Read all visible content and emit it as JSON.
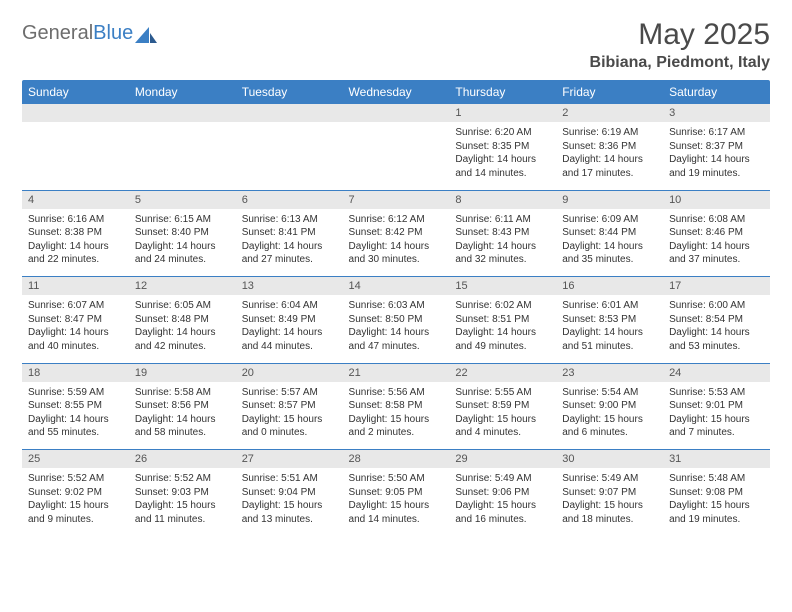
{
  "brand": {
    "part1": "General",
    "part2": "Blue"
  },
  "title": "May 2025",
  "location": "Bibiana, Piedmont, Italy",
  "colors": {
    "header_bg": "#3b7fc4",
    "header_text": "#ffffff",
    "daynum_bg": "#e8e8e8",
    "daynum_text": "#555555",
    "body_text": "#333333",
    "logo_gray": "#6d6d6d",
    "logo_blue": "#3b7fc4",
    "page_bg": "#ffffff"
  },
  "weekdays": [
    "Sunday",
    "Monday",
    "Tuesday",
    "Wednesday",
    "Thursday",
    "Friday",
    "Saturday"
  ],
  "weeks": [
    {
      "nums": [
        "",
        "",
        "",
        "",
        "1",
        "2",
        "3"
      ],
      "cells": [
        null,
        null,
        null,
        null,
        {
          "sunrise": "Sunrise: 6:20 AM",
          "sunset": "Sunset: 8:35 PM",
          "day1": "Daylight: 14 hours",
          "day2": "and 14 minutes."
        },
        {
          "sunrise": "Sunrise: 6:19 AM",
          "sunset": "Sunset: 8:36 PM",
          "day1": "Daylight: 14 hours",
          "day2": "and 17 minutes."
        },
        {
          "sunrise": "Sunrise: 6:17 AM",
          "sunset": "Sunset: 8:37 PM",
          "day1": "Daylight: 14 hours",
          "day2": "and 19 minutes."
        }
      ]
    },
    {
      "nums": [
        "4",
        "5",
        "6",
        "7",
        "8",
        "9",
        "10"
      ],
      "cells": [
        {
          "sunrise": "Sunrise: 6:16 AM",
          "sunset": "Sunset: 8:38 PM",
          "day1": "Daylight: 14 hours",
          "day2": "and 22 minutes."
        },
        {
          "sunrise": "Sunrise: 6:15 AM",
          "sunset": "Sunset: 8:40 PM",
          "day1": "Daylight: 14 hours",
          "day2": "and 24 minutes."
        },
        {
          "sunrise": "Sunrise: 6:13 AM",
          "sunset": "Sunset: 8:41 PM",
          "day1": "Daylight: 14 hours",
          "day2": "and 27 minutes."
        },
        {
          "sunrise": "Sunrise: 6:12 AM",
          "sunset": "Sunset: 8:42 PM",
          "day1": "Daylight: 14 hours",
          "day2": "and 30 minutes."
        },
        {
          "sunrise": "Sunrise: 6:11 AM",
          "sunset": "Sunset: 8:43 PM",
          "day1": "Daylight: 14 hours",
          "day2": "and 32 minutes."
        },
        {
          "sunrise": "Sunrise: 6:09 AM",
          "sunset": "Sunset: 8:44 PM",
          "day1": "Daylight: 14 hours",
          "day2": "and 35 minutes."
        },
        {
          "sunrise": "Sunrise: 6:08 AM",
          "sunset": "Sunset: 8:46 PM",
          "day1": "Daylight: 14 hours",
          "day2": "and 37 minutes."
        }
      ]
    },
    {
      "nums": [
        "11",
        "12",
        "13",
        "14",
        "15",
        "16",
        "17"
      ],
      "cells": [
        {
          "sunrise": "Sunrise: 6:07 AM",
          "sunset": "Sunset: 8:47 PM",
          "day1": "Daylight: 14 hours",
          "day2": "and 40 minutes."
        },
        {
          "sunrise": "Sunrise: 6:05 AM",
          "sunset": "Sunset: 8:48 PM",
          "day1": "Daylight: 14 hours",
          "day2": "and 42 minutes."
        },
        {
          "sunrise": "Sunrise: 6:04 AM",
          "sunset": "Sunset: 8:49 PM",
          "day1": "Daylight: 14 hours",
          "day2": "and 44 minutes."
        },
        {
          "sunrise": "Sunrise: 6:03 AM",
          "sunset": "Sunset: 8:50 PM",
          "day1": "Daylight: 14 hours",
          "day2": "and 47 minutes."
        },
        {
          "sunrise": "Sunrise: 6:02 AM",
          "sunset": "Sunset: 8:51 PM",
          "day1": "Daylight: 14 hours",
          "day2": "and 49 minutes."
        },
        {
          "sunrise": "Sunrise: 6:01 AM",
          "sunset": "Sunset: 8:53 PM",
          "day1": "Daylight: 14 hours",
          "day2": "and 51 minutes."
        },
        {
          "sunrise": "Sunrise: 6:00 AM",
          "sunset": "Sunset: 8:54 PM",
          "day1": "Daylight: 14 hours",
          "day2": "and 53 minutes."
        }
      ]
    },
    {
      "nums": [
        "18",
        "19",
        "20",
        "21",
        "22",
        "23",
        "24"
      ],
      "cells": [
        {
          "sunrise": "Sunrise: 5:59 AM",
          "sunset": "Sunset: 8:55 PM",
          "day1": "Daylight: 14 hours",
          "day2": "and 55 minutes."
        },
        {
          "sunrise": "Sunrise: 5:58 AM",
          "sunset": "Sunset: 8:56 PM",
          "day1": "Daylight: 14 hours",
          "day2": "and 58 minutes."
        },
        {
          "sunrise": "Sunrise: 5:57 AM",
          "sunset": "Sunset: 8:57 PM",
          "day1": "Daylight: 15 hours",
          "day2": "and 0 minutes."
        },
        {
          "sunrise": "Sunrise: 5:56 AM",
          "sunset": "Sunset: 8:58 PM",
          "day1": "Daylight: 15 hours",
          "day2": "and 2 minutes."
        },
        {
          "sunrise": "Sunrise: 5:55 AM",
          "sunset": "Sunset: 8:59 PM",
          "day1": "Daylight: 15 hours",
          "day2": "and 4 minutes."
        },
        {
          "sunrise": "Sunrise: 5:54 AM",
          "sunset": "Sunset: 9:00 PM",
          "day1": "Daylight: 15 hours",
          "day2": "and 6 minutes."
        },
        {
          "sunrise": "Sunrise: 5:53 AM",
          "sunset": "Sunset: 9:01 PM",
          "day1": "Daylight: 15 hours",
          "day2": "and 7 minutes."
        }
      ]
    },
    {
      "nums": [
        "25",
        "26",
        "27",
        "28",
        "29",
        "30",
        "31"
      ],
      "cells": [
        {
          "sunrise": "Sunrise: 5:52 AM",
          "sunset": "Sunset: 9:02 PM",
          "day1": "Daylight: 15 hours",
          "day2": "and 9 minutes."
        },
        {
          "sunrise": "Sunrise: 5:52 AM",
          "sunset": "Sunset: 9:03 PM",
          "day1": "Daylight: 15 hours",
          "day2": "and 11 minutes."
        },
        {
          "sunrise": "Sunrise: 5:51 AM",
          "sunset": "Sunset: 9:04 PM",
          "day1": "Daylight: 15 hours",
          "day2": "and 13 minutes."
        },
        {
          "sunrise": "Sunrise: 5:50 AM",
          "sunset": "Sunset: 9:05 PM",
          "day1": "Daylight: 15 hours",
          "day2": "and 14 minutes."
        },
        {
          "sunrise": "Sunrise: 5:49 AM",
          "sunset": "Sunset: 9:06 PM",
          "day1": "Daylight: 15 hours",
          "day2": "and 16 minutes."
        },
        {
          "sunrise": "Sunrise: 5:49 AM",
          "sunset": "Sunset: 9:07 PM",
          "day1": "Daylight: 15 hours",
          "day2": "and 18 minutes."
        },
        {
          "sunrise": "Sunrise: 5:48 AM",
          "sunset": "Sunset: 9:08 PM",
          "day1": "Daylight: 15 hours",
          "day2": "and 19 minutes."
        }
      ]
    }
  ]
}
